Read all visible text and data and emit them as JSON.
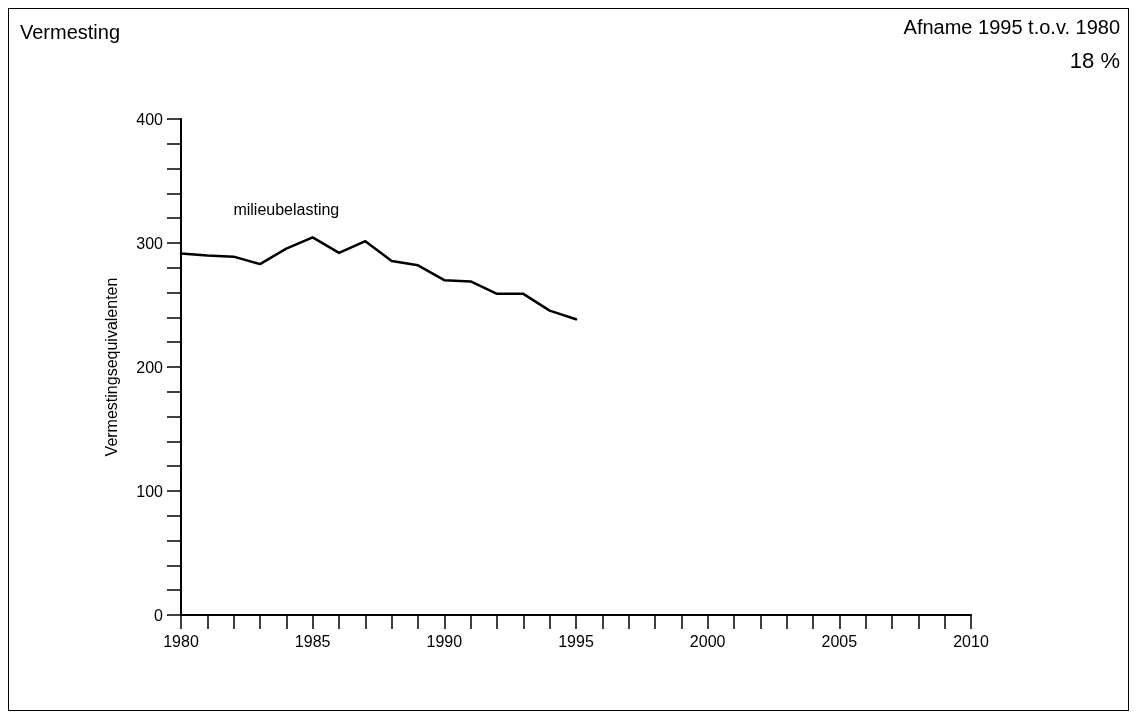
{
  "chart_data": {
    "type": "line",
    "title": "Vermesting",
    "ylabel": "Vermestingsequivalenten",
    "annotations": [
      "Afname 1995 t.o.v. 1980",
      "18 %"
    ],
    "x": [
      1980,
      1981,
      1982,
      1983,
      1984,
      1985,
      1986,
      1987,
      1988,
      1989,
      1990,
      1991,
      1992,
      1993,
      1994,
      1995
    ],
    "series": [
      {
        "name": "milieubelasting",
        "color": "#000000",
        "values": [
          291.5,
          290,
          289,
          283,
          295.5,
          304.5,
          292,
          301.5,
          285.5,
          282,
          270,
          269,
          259,
          259,
          245.5,
          238.5
        ]
      }
    ],
    "xlim": [
      1980,
      2010
    ],
    "xticks": [
      1980,
      {
        "value": 1981,
        "label": null
      },
      {
        "value": 1982,
        "label": null
      },
      {
        "value": 1983,
        "label": null
      },
      {
        "value": 1984,
        "label": null
      },
      1985,
      {
        "value": 1986,
        "label": null
      },
      {
        "value": 1987,
        "label": null
      },
      {
        "value": 1988,
        "label": null
      },
      {
        "value": 1989,
        "label": null
      },
      1990,
      {
        "value": 1991,
        "label": null
      },
      {
        "value": 1992,
        "label": null
      },
      {
        "value": 1993,
        "label": null
      },
      {
        "value": 1994,
        "label": null
      },
      1995,
      {
        "value": 1996,
        "label": null
      },
      {
        "value": 1997,
        "label": null
      },
      {
        "value": 1998,
        "label": null
      },
      {
        "value": 1999,
        "label": null
      },
      2000,
      {
        "value": 2001,
        "label": null
      },
      {
        "value": 2002,
        "label": null
      },
      {
        "value": 2003,
        "label": null
      },
      {
        "value": 2004,
        "label": null
      },
      2005,
      {
        "value": 2006,
        "label": null
      },
      {
        "value": 2007,
        "label": null
      },
      {
        "value": 2008,
        "label": null
      },
      {
        "value": 2009,
        "label": null
      },
      2010
    ],
    "ylim": [
      0,
      400
    ],
    "yticks": [
      0,
      {
        "value": 20,
        "label": null
      },
      {
        "value": 40,
        "label": null
      },
      {
        "value": 60,
        "label": null
      },
      {
        "value": 80,
        "label": null
      },
      100,
      {
        "value": 120,
        "label": null
      },
      {
        "value": 140,
        "label": null
      },
      {
        "value": 160,
        "label": null
      },
      {
        "value": 180,
        "label": null
      },
      200,
      {
        "value": 220,
        "label": null
      },
      {
        "value": 240,
        "label": null
      },
      {
        "value": 260,
        "label": null
      },
      {
        "value": 280,
        "label": null
      },
      300,
      {
        "value": 320,
        "label": null
      },
      {
        "value": 340,
        "label": null
      },
      {
        "value": 360,
        "label": null
      },
      {
        "value": 380,
        "label": null
      },
      400
    ],
    "grid": false,
    "legend": false,
    "marker": "none",
    "line_style": "solid"
  }
}
